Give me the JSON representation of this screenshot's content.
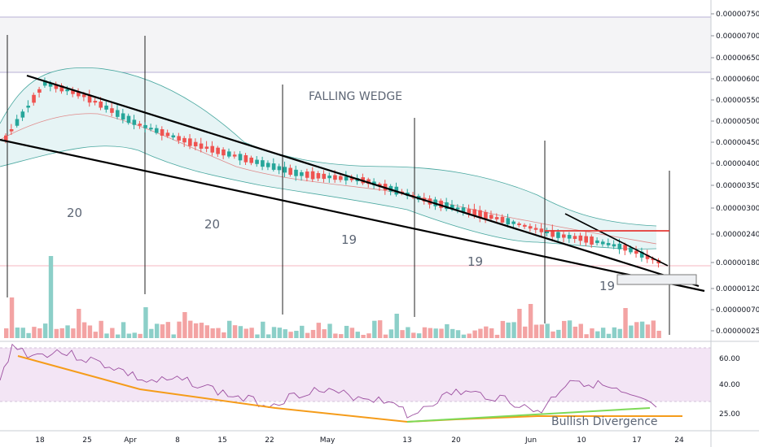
{
  "chart_data": [
    {
      "type": "candlestick",
      "title": "FALLING WEDGE",
      "price_axis_labels": [
        "0.00000750",
        "0.00000700",
        "0.00000650",
        "0.00000600",
        "0.00000550",
        "0.00000500",
        "0.00000450",
        "0.00000400",
        "0.00000350",
        "0.00000300",
        "0.00000240",
        "0.00000180",
        "0.00000120",
        "0.00000070",
        "0.00000025"
      ],
      "date_axis_labels": [
        "18",
        "25",
        "Apr",
        "8",
        "15",
        "22",
        "May",
        "13",
        "20",
        "Jun",
        "10",
        "17",
        "24"
      ],
      "cycle_counts": [
        "20",
        "20",
        "19",
        "19",
        "19"
      ],
      "colors": {
        "up": "#26a69a",
        "down": "#ef5350",
        "bollinger": "#4aa8a0",
        "band_fill": "#e3f2f4",
        "resistance": "#e53935"
      },
      "start_close": 4.55e-06,
      "end_close": 1.72e-06,
      "resistance_level": 2.5e-06,
      "support_box": [
        1.4e-06,
        1.55e-06
      ]
    },
    {
      "type": "line",
      "indicator": "RSI",
      "rsi_axis_labels": [
        "60.00",
        "40.00",
        "25.00"
      ],
      "overbought_band": [
        30,
        70
      ],
      "annotation": "Bullish Divergence",
      "colors": {
        "rsi": "#9c4fa0",
        "band": "#f3e5f5",
        "trend_down": "#f59c1a",
        "trend_up": "#7ed957"
      }
    }
  ]
}
